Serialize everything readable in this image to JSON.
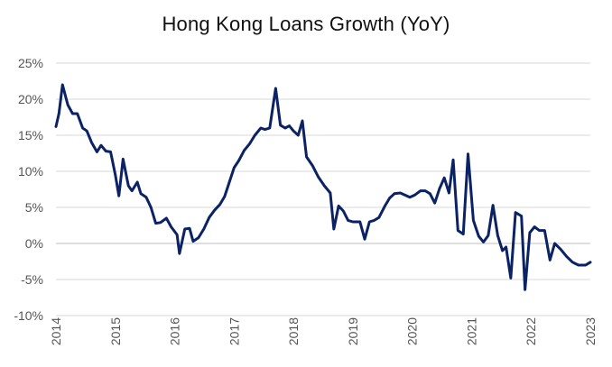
{
  "chart_data": {
    "type": "line",
    "title": "Hong Kong Loans Growth (YoY)",
    "xlabel": "",
    "ylabel": "",
    "y_unit": "%",
    "ylim": [
      -10,
      25
    ],
    "xlim": [
      2014.0,
      2023.0
    ],
    "grid": true,
    "legend": "none",
    "y_ticks": [
      25,
      20,
      15,
      10,
      5,
      0,
      -5,
      -10
    ],
    "y_tick_labels": [
      "25%",
      "20%",
      "15%",
      "10%",
      "5%",
      "0%",
      "-5%",
      "-10%"
    ],
    "x_ticks": [
      2014,
      2015,
      2016,
      2017,
      2018,
      2019,
      2020,
      2021,
      2022,
      2023
    ],
    "x_tick_labels": [
      "2014",
      "2015",
      "2016",
      "2017",
      "2018",
      "2019",
      "2020",
      "2021",
      "2022",
      "2023"
    ],
    "series": [
      {
        "color": "#0b2265",
        "points": [
          [
            2014.0,
            16.2
          ],
          [
            2014.05,
            18.0
          ],
          [
            2014.11,
            22.0
          ],
          [
            2014.2,
            19.2
          ],
          [
            2014.28,
            18.0
          ],
          [
            2014.36,
            18.0
          ],
          [
            2014.45,
            16.0
          ],
          [
            2014.52,
            15.6
          ],
          [
            2014.6,
            14.0
          ],
          [
            2014.69,
            12.7
          ],
          [
            2014.76,
            13.6
          ],
          [
            2014.84,
            12.8
          ],
          [
            2014.92,
            12.7
          ],
          [
            2015.0,
            9.5
          ],
          [
            2015.06,
            6.6
          ],
          [
            2015.13,
            11.7
          ],
          [
            2015.22,
            8.0
          ],
          [
            2015.28,
            7.3
          ],
          [
            2015.37,
            8.5
          ],
          [
            2015.43,
            6.9
          ],
          [
            2015.52,
            6.4
          ],
          [
            2015.6,
            5.0
          ],
          [
            2015.68,
            2.8
          ],
          [
            2015.76,
            2.9
          ],
          [
            2015.86,
            3.5
          ],
          [
            2015.94,
            2.3
          ],
          [
            2016.04,
            1.2
          ],
          [
            2016.08,
            -1.4
          ],
          [
            2016.17,
            2.0
          ],
          [
            2016.25,
            2.1
          ],
          [
            2016.31,
            0.3
          ],
          [
            2016.4,
            0.8
          ],
          [
            2016.49,
            2.0
          ],
          [
            2016.58,
            3.6
          ],
          [
            2016.67,
            4.6
          ],
          [
            2016.76,
            5.4
          ],
          [
            2016.84,
            6.5
          ],
          [
            2016.92,
            8.5
          ],
          [
            2017.0,
            10.5
          ],
          [
            2017.08,
            11.5
          ],
          [
            2017.17,
            12.9
          ],
          [
            2017.26,
            13.8
          ],
          [
            2017.35,
            15.0
          ],
          [
            2017.45,
            16.0
          ],
          [
            2017.52,
            15.8
          ],
          [
            2017.6,
            16.0
          ],
          [
            2017.7,
            21.5
          ],
          [
            2017.78,
            16.4
          ],
          [
            2017.86,
            16.0
          ],
          [
            2017.93,
            16.3
          ],
          [
            2018.0,
            15.6
          ],
          [
            2018.08,
            15.0
          ],
          [
            2018.15,
            17.0
          ],
          [
            2018.22,
            12.0
          ],
          [
            2018.32,
            10.8
          ],
          [
            2018.42,
            9.2
          ],
          [
            2018.52,
            8.0
          ],
          [
            2018.62,
            7.0
          ],
          [
            2018.68,
            2.0
          ],
          [
            2018.76,
            5.2
          ],
          [
            2018.84,
            4.5
          ],
          [
            2018.92,
            3.2
          ],
          [
            2019.0,
            3.0
          ],
          [
            2019.12,
            3.0
          ],
          [
            2019.2,
            0.6
          ],
          [
            2019.28,
            3.0
          ],
          [
            2019.36,
            3.2
          ],
          [
            2019.44,
            3.6
          ],
          [
            2019.54,
            5.2
          ],
          [
            2019.62,
            6.3
          ],
          [
            2019.7,
            6.9
          ],
          [
            2019.8,
            7.0
          ],
          [
            2019.88,
            6.7
          ],
          [
            2019.96,
            6.4
          ],
          [
            2020.04,
            6.7
          ],
          [
            2020.14,
            7.3
          ],
          [
            2020.22,
            7.3
          ],
          [
            2020.3,
            6.9
          ],
          [
            2020.38,
            5.6
          ],
          [
            2020.46,
            7.6
          ],
          [
            2020.54,
            9.1
          ],
          [
            2020.62,
            7.0
          ],
          [
            2020.69,
            11.6
          ],
          [
            2020.77,
            1.8
          ],
          [
            2020.86,
            1.3
          ],
          [
            2020.94,
            12.4
          ],
          [
            2021.03,
            3.2
          ],
          [
            2021.12,
            1.0
          ],
          [
            2021.2,
            0.2
          ],
          [
            2021.28,
            1.1
          ],
          [
            2021.36,
            5.3
          ],
          [
            2021.44,
            1.1
          ],
          [
            2021.52,
            -1.0
          ],
          [
            2021.58,
            -0.5
          ],
          [
            2021.66,
            -4.8
          ],
          [
            2021.74,
            4.3
          ],
          [
            2021.84,
            3.8
          ],
          [
            2021.9,
            -6.4
          ],
          [
            2021.98,
            1.5
          ],
          [
            2022.06,
            2.3
          ],
          [
            2022.14,
            1.8
          ],
          [
            2022.23,
            1.8
          ],
          [
            2022.32,
            -2.3
          ],
          [
            2022.4,
            0.0
          ],
          [
            2022.5,
            -0.8
          ],
          [
            2022.6,
            -1.8
          ],
          [
            2022.7,
            -2.6
          ],
          [
            2022.8,
            -3.0
          ],
          [
            2022.92,
            -3.0
          ],
          [
            2023.0,
            -2.6
          ]
        ]
      }
    ]
  }
}
